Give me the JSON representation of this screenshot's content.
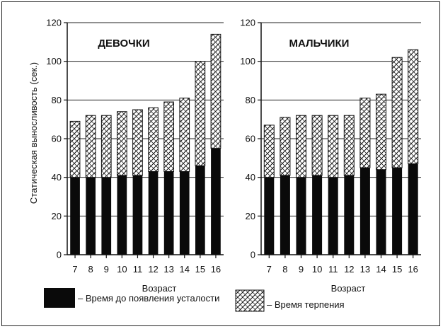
{
  "chart_data": [
    {
      "type": "bar",
      "stacked": true,
      "title": "ДЕВОЧКИ",
      "xlabel": "Возраст",
      "ylabel": "Статическая выносливость (сек.)",
      "categories": [
        "7",
        "8",
        "9",
        "10",
        "11",
        "12",
        "13",
        "14",
        "15",
        "16"
      ],
      "ylim": [
        0,
        120
      ],
      "yticks": [
        0,
        20,
        40,
        60,
        80,
        100,
        120
      ],
      "grid": true,
      "series": [
        {
          "name": "Время до появления усталости",
          "values": [
            40,
            40,
            40,
            41,
            41,
            43,
            43,
            43,
            46,
            55
          ]
        },
        {
          "name": "Время терпения",
          "values": [
            29,
            32,
            32,
            33,
            34,
            33,
            36,
            38,
            54,
            59
          ]
        }
      ]
    },
    {
      "type": "bar",
      "stacked": true,
      "title": "МАЛЬЧИКИ",
      "xlabel": "Возраст",
      "categories": [
        "7",
        "8",
        "9",
        "10",
        "11",
        "12",
        "13",
        "14",
        "15",
        "16"
      ],
      "ylim": [
        0,
        120
      ],
      "yticks": [
        0,
        20,
        40,
        60,
        80,
        100,
        120
      ],
      "grid": true,
      "series": [
        {
          "name": "Время до появления усталости",
          "values": [
            40,
            41,
            40,
            41,
            40,
            41,
            45,
            44,
            45,
            47
          ]
        },
        {
          "name": "Время терпения",
          "values": [
            27,
            30,
            32,
            31,
            32,
            31,
            36,
            39,
            57,
            59
          ]
        }
      ]
    }
  ],
  "legend": {
    "solid_label": "– Время до появления усталости",
    "hatched_label": "– Время терпения",
    "solid_color": "#0a0a0a",
    "hatch_color": "#111111"
  }
}
